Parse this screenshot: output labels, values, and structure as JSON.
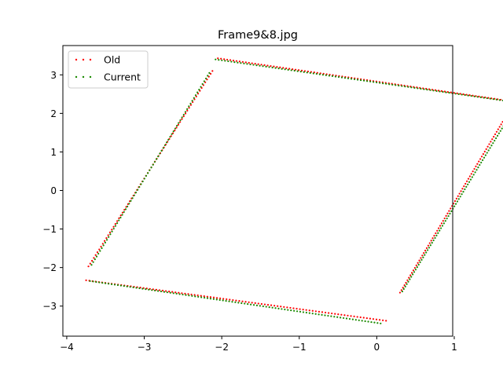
{
  "chart_data": {
    "type": "scatter",
    "title": "Frame9&8.jpg",
    "xlabel": "",
    "ylabel": "",
    "xlim": [
      -4.05,
      0.98
    ],
    "ylim": [
      -3.78,
      3.76
    ],
    "x_ticks": [
      -4,
      -3,
      -2,
      -1,
      0,
      1
    ],
    "y_ticks": [
      -3,
      -2,
      -1,
      0,
      1,
      2,
      3
    ],
    "x_tick_labels": [
      "−4",
      "−3",
      "−2",
      "−1",
      "0",
      "1"
    ],
    "y_tick_labels": [
      "−3",
      "−2",
      "−1",
      "0",
      "1",
      "2",
      "3"
    ],
    "grid": false,
    "legend_position": "top-left",
    "series": [
      {
        "name": "Old",
        "color": "#ff0000",
        "segments": [
          {
            "from": [
              -3.72,
              -1.97
            ],
            "to": [
              -2.12,
              3.1
            ],
            "n": 70
          },
          {
            "from": [
              -2.05,
              3.43
            ],
            "to": [
              1.72,
              2.32
            ],
            "n": 95
          },
          {
            "from": [
              0.3,
              -2.65
            ],
            "to": [
              1.72,
              2.1
            ],
            "n": 75
          },
          {
            "from": [
              -3.75,
              -2.33
            ],
            "to": [
              0.12,
              -3.38
            ],
            "n": 95
          }
        ]
      },
      {
        "name": "Current",
        "color": "#1a8a00",
        "segments": [
          {
            "from": [
              -3.68,
              -1.93
            ],
            "to": [
              -2.16,
              3.05
            ],
            "n": 70
          },
          {
            "from": [
              -2.08,
              3.4
            ],
            "to": [
              1.75,
              2.3
            ],
            "n": 95
          },
          {
            "from": [
              0.33,
              -2.62
            ],
            "to": [
              1.75,
              2.05
            ],
            "n": 75
          },
          {
            "from": [
              -3.7,
              -2.35
            ],
            "to": [
              0.05,
              -3.45
            ],
            "n": 95
          }
        ]
      }
    ]
  }
}
